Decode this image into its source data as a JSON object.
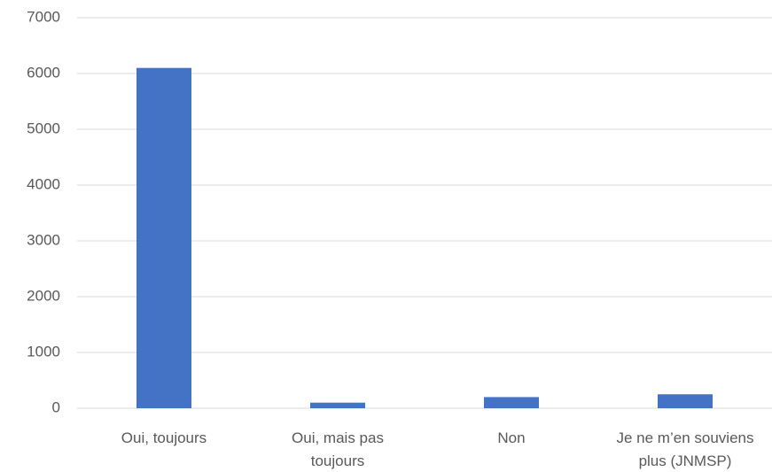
{
  "chart_data": {
    "type": "bar",
    "categories": [
      "Oui, toujours",
      "Oui, mais pas toujours",
      "Non",
      "Je ne m’en souviens plus (JNMSP)"
    ],
    "values": [
      6100,
      100,
      200,
      250
    ],
    "color": "#4472c4",
    "ylim": [
      0,
      7000
    ],
    "yticks": [
      0,
      1000,
      2000,
      3000,
      4000,
      5000,
      6000,
      7000
    ],
    "grid": true
  }
}
